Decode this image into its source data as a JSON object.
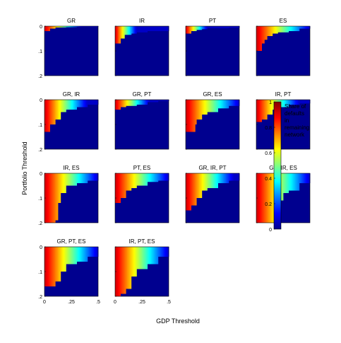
{
  "chart_data": {
    "type": "heatmap",
    "xlabel": "GDP Threshold",
    "ylabel": "Portfolio Threshold",
    "xlim": [
      0,
      0.5
    ],
    "ylim": [
      0,
      0.2
    ],
    "x_ticks": [
      "0",
      ".25",
      ".5"
    ],
    "y_ticks": [
      "0",
      ".1",
      ".2"
    ],
    "colorbar": {
      "label_lines": [
        "Share of",
        "defaults",
        "in",
        "remaining",
        "network"
      ],
      "range": [
        0,
        1
      ],
      "ticks": [
        "0",
        "0.2",
        "0.4",
        "0.6",
        "0.8",
        "1"
      ],
      "colormap": "jet"
    },
    "panels": [
      {
        "title": "GR",
        "gradient_end": 0.35,
        "steps": [
          [
            0.0,
            0.02
          ],
          [
            0.05,
            0.01
          ],
          [
            0.1,
            0.005
          ],
          [
            0.2,
            0.004
          ],
          [
            0.3,
            0.003
          ],
          [
            0.5,
            0.002
          ]
        ]
      },
      {
        "title": "IR",
        "gradient_end": 0.2,
        "steps": [
          [
            0.0,
            0.07
          ],
          [
            0.05,
            0.05
          ],
          [
            0.08,
            0.035
          ],
          [
            0.14,
            0.03
          ],
          [
            0.2,
            0.025
          ],
          [
            0.3,
            0.02
          ],
          [
            0.5,
            0.018
          ]
        ]
      },
      {
        "title": "PT",
        "gradient_end": 0.2,
        "steps": [
          [
            0.0,
            0.03
          ],
          [
            0.05,
            0.02
          ],
          [
            0.1,
            0.015
          ],
          [
            0.14,
            0.012
          ],
          [
            0.2,
            0.008
          ],
          [
            0.4,
            0.006
          ],
          [
            0.5,
            0.004
          ]
        ]
      },
      {
        "title": "ES",
        "gradient_end": 0.5,
        "steps": [
          [
            0.0,
            0.1
          ],
          [
            0.05,
            0.07
          ],
          [
            0.07,
            0.055
          ],
          [
            0.1,
            0.04
          ],
          [
            0.15,
            0.03
          ],
          [
            0.2,
            0.025
          ],
          [
            0.3,
            0.02
          ],
          [
            0.4,
            0.01
          ],
          [
            0.5,
            0.01
          ]
        ]
      },
      {
        "title": "GR, IR",
        "gradient_end": 0.4,
        "steps": [
          [
            0.0,
            0.13
          ],
          [
            0.05,
            0.1
          ],
          [
            0.1,
            0.08
          ],
          [
            0.15,
            0.05
          ],
          [
            0.2,
            0.04
          ],
          [
            0.3,
            0.03
          ],
          [
            0.4,
            0.02
          ],
          [
            0.5,
            0.02
          ]
        ]
      },
      {
        "title": "GR, PT",
        "gradient_end": 0.32,
        "steps": [
          [
            0.0,
            0.04
          ],
          [
            0.05,
            0.03
          ],
          [
            0.1,
            0.025
          ],
          [
            0.2,
            0.02
          ],
          [
            0.3,
            0.01
          ],
          [
            0.4,
            0.005
          ],
          [
            0.5,
            0.005
          ]
        ]
      },
      {
        "title": "GR, ES",
        "gradient_end": 0.5,
        "steps": [
          [
            0.0,
            0.13
          ],
          [
            0.08,
            0.1
          ],
          [
            0.1,
            0.08
          ],
          [
            0.15,
            0.06
          ],
          [
            0.2,
            0.05
          ],
          [
            0.3,
            0.035
          ],
          [
            0.4,
            0.025
          ],
          [
            0.5,
            0.02
          ]
        ]
      },
      {
        "title": "IR, PT",
        "gradient_end": 0.4,
        "steps": [
          [
            0.0,
            0.09
          ],
          [
            0.05,
            0.08
          ],
          [
            0.1,
            0.06
          ],
          [
            0.15,
            0.04
          ],
          [
            0.2,
            0.03
          ],
          [
            0.3,
            0.02
          ],
          [
            0.4,
            0.015
          ],
          [
            0.5,
            0.01
          ]
        ]
      },
      {
        "title": "IR, ES",
        "gradient_end": 0.5,
        "steps": [
          [
            0.0,
            0.2
          ],
          [
            0.1,
            0.19
          ],
          [
            0.12,
            0.12
          ],
          [
            0.15,
            0.08
          ],
          [
            0.2,
            0.05
          ],
          [
            0.3,
            0.04
          ],
          [
            0.4,
            0.03
          ],
          [
            0.5,
            0.02
          ]
        ]
      },
      {
        "title": "PT, ES",
        "gradient_end": 0.5,
        "steps": [
          [
            0.0,
            0.12
          ],
          [
            0.05,
            0.1
          ],
          [
            0.1,
            0.07
          ],
          [
            0.15,
            0.06
          ],
          [
            0.2,
            0.05
          ],
          [
            0.3,
            0.035
          ],
          [
            0.4,
            0.03
          ],
          [
            0.5,
            0.02
          ]
        ]
      },
      {
        "title": "GR, IR, PT",
        "gradient_end": 0.45,
        "steps": [
          [
            0.0,
            0.15
          ],
          [
            0.05,
            0.13
          ],
          [
            0.1,
            0.1
          ],
          [
            0.15,
            0.07
          ],
          [
            0.2,
            0.06
          ],
          [
            0.3,
            0.04
          ],
          [
            0.4,
            0.03
          ],
          [
            0.5,
            0.02
          ]
        ]
      },
      {
        "title": "GR, IR, ES",
        "gradient_end": 0.5,
        "steps": [
          [
            0.0,
            0.2
          ],
          [
            0.2,
            0.2
          ],
          [
            0.22,
            0.11
          ],
          [
            0.25,
            0.08
          ],
          [
            0.3,
            0.07
          ],
          [
            0.4,
            0.04
          ],
          [
            0.5,
            0.03
          ]
        ]
      },
      {
        "title": "GR, PT, ES",
        "gradient_end": 0.5,
        "steps": [
          [
            0.0,
            0.16
          ],
          [
            0.1,
            0.14
          ],
          [
            0.15,
            0.1
          ],
          [
            0.2,
            0.07
          ],
          [
            0.3,
            0.06
          ],
          [
            0.4,
            0.04
          ],
          [
            0.5,
            0.03
          ]
        ]
      },
      {
        "title": "IR, PT, ES",
        "gradient_end": 0.5,
        "steps": [
          [
            0.0,
            0.2
          ],
          [
            0.05,
            0.19
          ],
          [
            0.1,
            0.17
          ],
          [
            0.15,
            0.12
          ],
          [
            0.2,
            0.09
          ],
          [
            0.3,
            0.07
          ],
          [
            0.4,
            0.04
          ],
          [
            0.5,
            0.03
          ]
        ]
      }
    ]
  }
}
